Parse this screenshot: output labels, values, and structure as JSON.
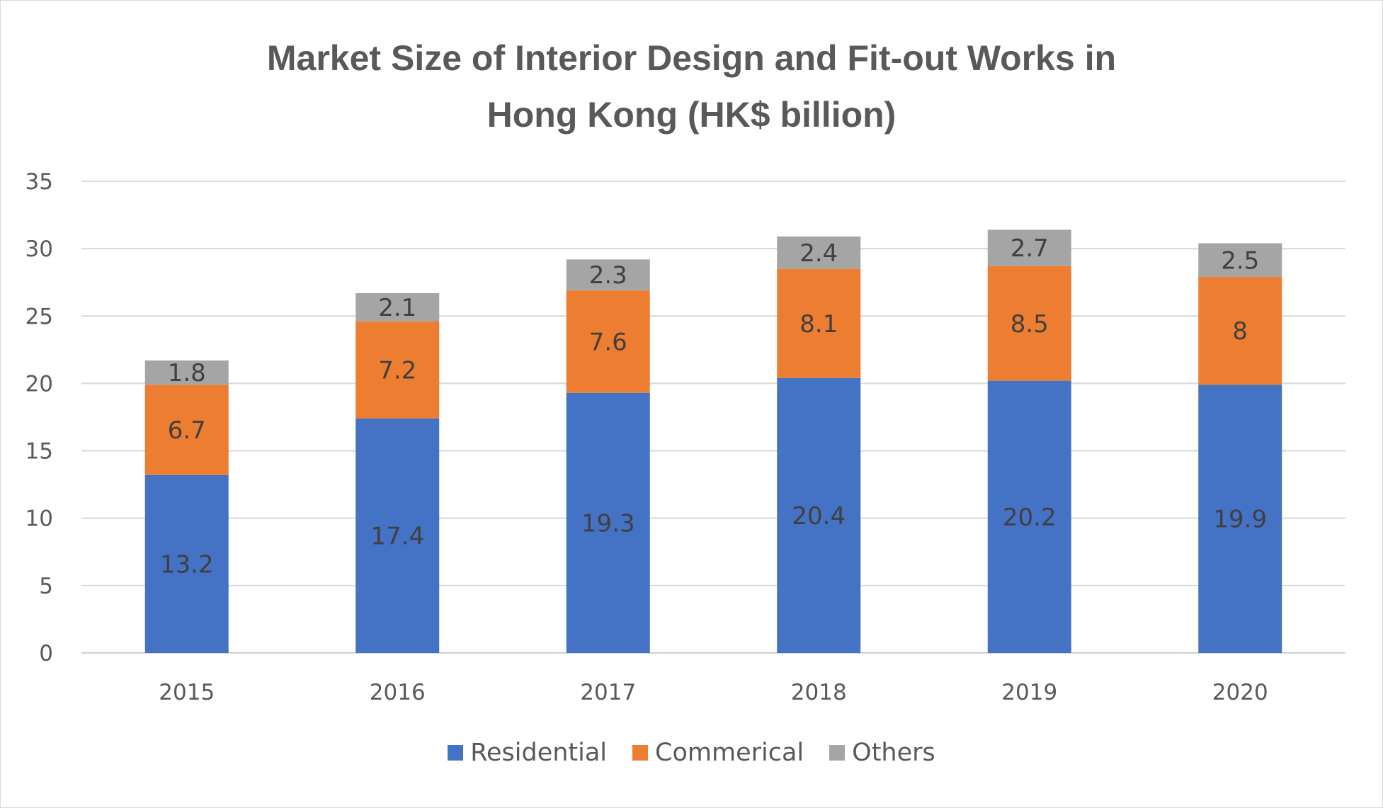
{
  "chart_data": {
    "type": "bar",
    "stacked": true,
    "title_line1": "Market Size of Interior Design and Fit-out Works in",
    "title_line2": "Hong Kong (HK$ billion)",
    "categories": [
      "2015",
      "2016",
      "2017",
      "2018",
      "2019",
      "2020"
    ],
    "series": [
      {
        "name": "Residential",
        "color": "#4472C4",
        "values": [
          13.2,
          17.4,
          19.3,
          20.4,
          20.2,
          19.9
        ]
      },
      {
        "name": "Commerical",
        "color": "#ED7D31",
        "values": [
          6.7,
          7.2,
          7.6,
          8.1,
          8.5,
          8
        ]
      },
      {
        "name": "Others",
        "color": "#A5A5A5",
        "values": [
          1.8,
          2.1,
          2.3,
          2.4,
          2.7,
          2.5
        ]
      }
    ],
    "ylim": [
      0,
      35
    ],
    "yticks": [
      "0",
      "5",
      "10",
      "15",
      "20",
      "25",
      "30",
      "35"
    ],
    "grid": true,
    "legend_position": "bottom"
  }
}
